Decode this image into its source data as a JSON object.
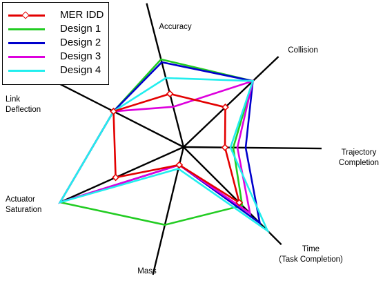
{
  "chart_data": {
    "type": "radar",
    "title": "",
    "axes": [
      {
        "label": "Accuracy"
      },
      {
        "label": "Collision"
      },
      {
        "label": "Trajectory\nCompletion"
      },
      {
        "label": "Time\n(Task Completion)"
      },
      {
        "label": "Mass"
      },
      {
        "label": "Actuator\nSaturation"
      },
      {
        "label": "Link\nDeflection"
      }
    ],
    "range": [
      0,
      1
    ],
    "series": [
      {
        "name": "MER IDD",
        "color": "#e30000",
        "marker": "diamond",
        "values": [
          0.37,
          0.44,
          0.3,
          0.57,
          0.14,
          0.55,
          0.53
        ]
      },
      {
        "name": "Design 1",
        "color": "#22cc22",
        "marker": "none",
        "values": [
          0.61,
          0.73,
          0.36,
          0.6,
          0.61,
          1.0,
          0.53
        ]
      },
      {
        "name": "Design 2",
        "color": "#0000cc",
        "marker": "none",
        "values": [
          0.59,
          0.73,
          0.45,
          0.78,
          0.14,
          1.0,
          0.53
        ]
      },
      {
        "name": "Design 3",
        "color": "#dd00dd",
        "marker": "none",
        "values": [
          0.28,
          0.73,
          0.39,
          0.68,
          0.14,
          1.0,
          0.53
        ]
      },
      {
        "name": "Design 4",
        "color": "#22eeee",
        "marker": "none",
        "values": [
          0.48,
          0.73,
          0.34,
          0.86,
          0.17,
          1.0,
          0.53
        ]
      }
    ]
  }
}
